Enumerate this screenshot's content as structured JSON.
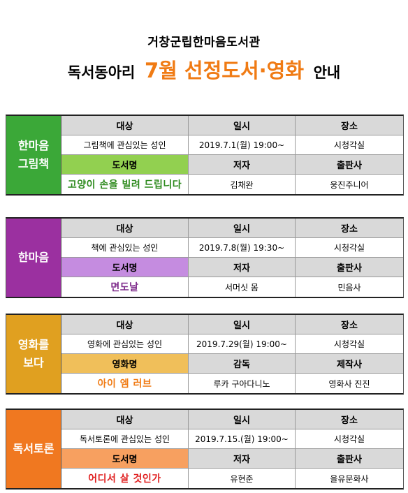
{
  "header": {
    "library": "거창군립한마음도서관",
    "title_prefix": "독서동아리",
    "title_highlight": "7월  선정도서·영화",
    "title_suffix": "안내"
  },
  "headers": {
    "target": "대상",
    "datetime": "일시",
    "place": "장소"
  },
  "clubs": [
    {
      "name": "한마음\n그림책",
      "color": "#3ba838",
      "accent": "#92d050",
      "target": "그림책에 관심있는 성인",
      "datetime": "2019.7.1(월) 19:00~",
      "place": "시청각실",
      "item_label": "도서명",
      "creator_label": "저자",
      "producer_label": "출판사",
      "item": "고양이 손을 빌려 드립니다",
      "item_color": "#2e8b1e",
      "creator": "김채완",
      "producer": "웅진주니어"
    },
    {
      "name": "한마음",
      "color": "#9b30a0",
      "accent": "#c58ce0",
      "target": "책에 관심있는 성인",
      "datetime": "2019.7.8(월) 19:30~",
      "place": "시청각실",
      "item_label": "도서명",
      "creator_label": "저자",
      "producer_label": "출판사",
      "item": "면도날",
      "item_color": "#7d2a8a",
      "creator": "서머싯 몸",
      "producer": "민음사"
    },
    {
      "name": "영화를\n보다",
      "color": "#e0a020",
      "accent": "#f0bf5a",
      "target": "영화에 관심있는 성인",
      "datetime": "2019.7.29(월) 19:00~",
      "place": "시청각실",
      "item_label": "영화명",
      "creator_label": "감독",
      "producer_label": "제작사",
      "item": "아이 엠 러브",
      "item_color": "#f07b14",
      "creator": "루카 구아다니노",
      "producer": "영화사 진진"
    },
    {
      "name": "독서토론",
      "color": "#f07820",
      "accent": "#f7a060",
      "target": "독서토론에 관심있는 성인",
      "datetime": "2019.7.15.(월) 19:00~",
      "place": "시청각실",
      "item_label": "도서명",
      "creator_label": "저자",
      "producer_label": "출판사",
      "item": "어디서 살 것인가",
      "item_color": "#e02020",
      "creator": "유현준",
      "producer": "을유문화사"
    }
  ]
}
